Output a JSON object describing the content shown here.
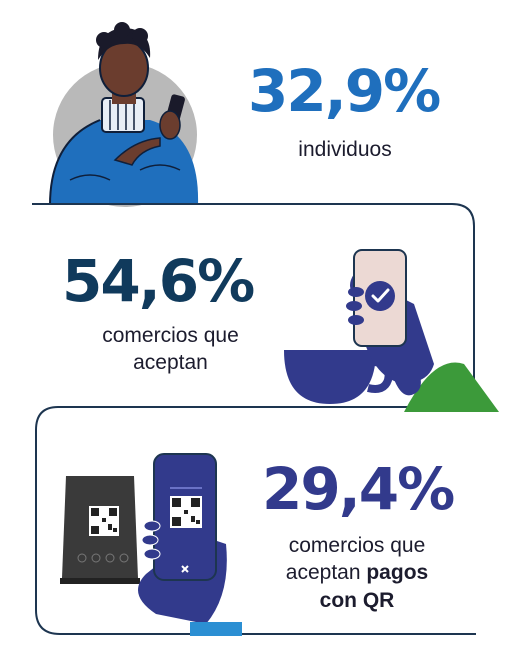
{
  "colors": {
    "blue": "#1f6fbd",
    "navy": "#103a5c",
    "indigo": "#323a8c",
    "grey_circle": "#b9b9b9",
    "line": "#1d3550",
    "green": "#3c9a3a"
  },
  "stats": [
    {
      "value": "32,9%",
      "label": "individuos",
      "illustration": "person-with-phone-icon"
    },
    {
      "value": "54,6%",
      "label_lines": [
        "comercios que",
        "aceptan"
      ],
      "illustration": "hand-phone-check-icon"
    },
    {
      "value": "29,4%",
      "label_lines": [
        "comercios que",
        "aceptan "
      ],
      "label_bold_parts": [
        "pagos",
        "con QR"
      ],
      "illustration": "qr-stand-and-phone-icon"
    }
  ]
}
